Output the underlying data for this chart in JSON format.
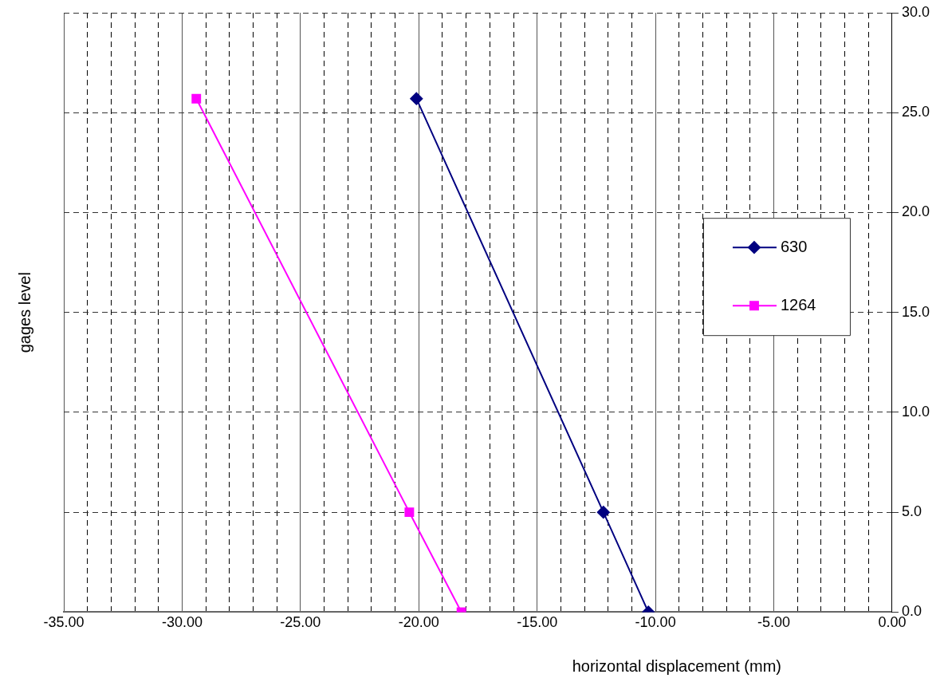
{
  "chart_data": {
    "type": "line",
    "xlabel": "horizontal displacement (mm)",
    "ylabel": "gages level",
    "xlim": [
      -35,
      0
    ],
    "ylim": [
      0,
      30
    ],
    "xticks": [
      {
        "value": -35,
        "label": "-35.00"
      },
      {
        "value": -34,
        "label": null
      },
      {
        "value": -33,
        "label": null
      },
      {
        "value": -32,
        "label": null
      },
      {
        "value": -31,
        "label": null
      },
      {
        "value": -30,
        "label": "-30.00"
      },
      {
        "value": -29,
        "label": null
      },
      {
        "value": -28,
        "label": null
      },
      {
        "value": -27,
        "label": null
      },
      {
        "value": -26,
        "label": null
      },
      {
        "value": -25,
        "label": "-25.00"
      },
      {
        "value": -24,
        "label": null
      },
      {
        "value": -23,
        "label": null
      },
      {
        "value": -22,
        "label": null
      },
      {
        "value": -21,
        "label": null
      },
      {
        "value": -20,
        "label": "-20.00"
      },
      {
        "value": -19,
        "label": null
      },
      {
        "value": -18,
        "label": null
      },
      {
        "value": -17,
        "label": null
      },
      {
        "value": -16,
        "label": null
      },
      {
        "value": -15,
        "label": "-15.00"
      },
      {
        "value": -14,
        "label": null
      },
      {
        "value": -13,
        "label": null
      },
      {
        "value": -12,
        "label": null
      },
      {
        "value": -11,
        "label": null
      },
      {
        "value": -10,
        "label": "-10.00"
      },
      {
        "value": -9,
        "label": null
      },
      {
        "value": -8,
        "label": null
      },
      {
        "value": -7,
        "label": null
      },
      {
        "value": -6,
        "label": null
      },
      {
        "value": -5,
        "label": "-5.00"
      },
      {
        "value": -4,
        "label": null
      },
      {
        "value": -3,
        "label": null
      },
      {
        "value": -2,
        "label": null
      },
      {
        "value": -1,
        "label": null
      },
      {
        "value": 0,
        "label": "0.00"
      }
    ],
    "yticks": [
      {
        "value": 0,
        "label": "0.0"
      },
      {
        "value": 5,
        "label": "5.0"
      },
      {
        "value": 10,
        "label": "10.0"
      },
      {
        "value": 15,
        "label": "15.0"
      },
      {
        "value": 20,
        "label": "20.0"
      },
      {
        "value": 25,
        "label": "25.0"
      },
      {
        "value": 30,
        "label": "30.0"
      }
    ],
    "grid": true,
    "legend": "right",
    "line_style": "solid",
    "series": [
      {
        "name": "630",
        "color": "#000080",
        "marker": "diamond",
        "x": [
          -20.1,
          -12.2,
          -10.3
        ],
        "values": [
          25.7,
          5.0,
          0
        ]
      },
      {
        "name": "1264",
        "color": "#ff00ff",
        "marker": "square",
        "x": [
          -29.4,
          -20.4,
          -18.2
        ],
        "values": [
          25.7,
          5.0,
          0
        ]
      }
    ]
  }
}
